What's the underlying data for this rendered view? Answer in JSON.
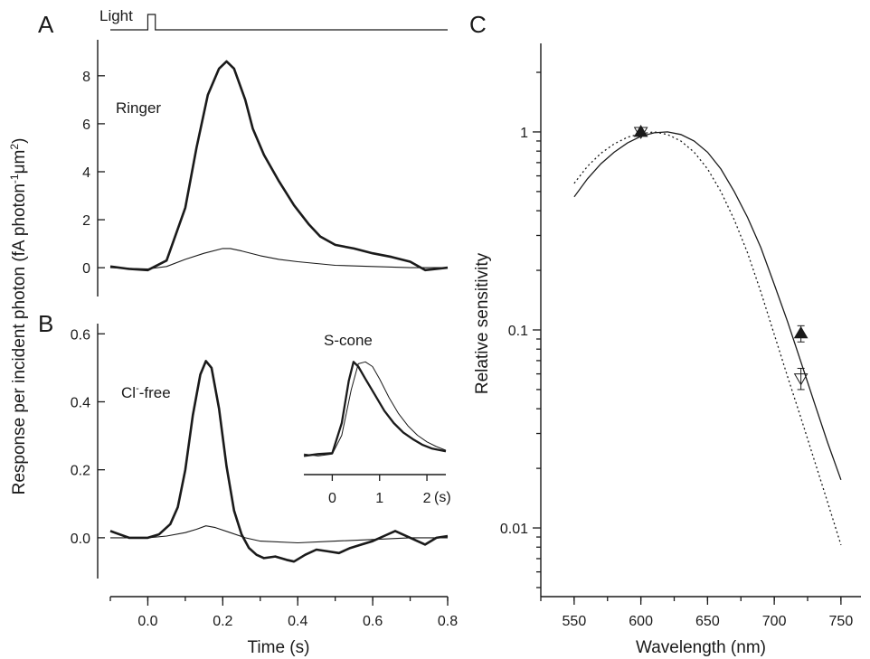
{
  "panels": {
    "a": "A",
    "b": "B",
    "c": "C"
  },
  "light_label": "Light",
  "ylabel_ab_main": "Response per incident photon (fA photon",
  "ylabel_ab_sup1": "-1",
  "ylabel_ab_mid": "μm",
  "ylabel_ab_sup2": "2",
  "ylabel_ab_end": ")",
  "annotation_ringer": "Ringer",
  "annotation_clfree_pre": "Cl",
  "annotation_clfree_sup": "-",
  "annotation_clfree_post": "-free",
  "inset_title": "S-cone",
  "inset_unit": "(s)",
  "chart_data": [
    {
      "id": "A",
      "type": "line",
      "title": "",
      "annotation": "Ringer",
      "xlabel": "",
      "ylabel": "Response per incident photon (fA photon-1 μm2)",
      "xlim": [
        -0.1,
        0.8
      ],
      "ylim": [
        -1.2,
        9.5
      ],
      "yticks": [
        0,
        2,
        4,
        6,
        8
      ],
      "stimulus": {
        "label": "Light",
        "on": 0.0,
        "off": 0.02
      },
      "series": [
        {
          "style": "thick",
          "x": [
            -0.1,
            -0.05,
            0.0,
            0.05,
            0.1,
            0.13,
            0.16,
            0.19,
            0.21,
            0.23,
            0.26,
            0.28,
            0.31,
            0.35,
            0.39,
            0.43,
            0.46,
            0.5,
            0.55,
            0.6,
            0.65,
            0.7,
            0.74,
            0.77,
            0.8
          ],
          "y": [
            0.05,
            -0.05,
            -0.1,
            0.3,
            2.5,
            5.0,
            7.2,
            8.3,
            8.6,
            8.3,
            7.0,
            5.8,
            4.7,
            3.6,
            2.6,
            1.8,
            1.3,
            0.95,
            0.8,
            0.6,
            0.45,
            0.25,
            -0.1,
            -0.05,
            0.0
          ]
        },
        {
          "style": "thin",
          "x": [
            -0.1,
            0.0,
            0.05,
            0.1,
            0.15,
            0.2,
            0.22,
            0.25,
            0.3,
            0.35,
            0.4,
            0.5,
            0.6,
            0.7,
            0.8
          ],
          "y": [
            0.0,
            -0.05,
            0.05,
            0.35,
            0.6,
            0.8,
            0.8,
            0.7,
            0.5,
            0.35,
            0.25,
            0.1,
            0.05,
            0.0,
            0.0
          ]
        }
      ]
    },
    {
      "id": "B",
      "type": "line",
      "title": "",
      "annotation": "Cl-free",
      "xlabel": "Time (s)",
      "xlim": [
        -0.1,
        0.8
      ],
      "xticks": [
        0.0,
        0.2,
        0.4,
        0.6,
        0.8
      ],
      "ylim": [
        -0.12,
        0.63
      ],
      "yticks": [
        0.0,
        0.2,
        0.4,
        0.6
      ],
      "series": [
        {
          "style": "thick",
          "x": [
            -0.1,
            -0.05,
            0.0,
            0.03,
            0.06,
            0.08,
            0.1,
            0.12,
            0.14,
            0.155,
            0.17,
            0.19,
            0.21,
            0.23,
            0.25,
            0.27,
            0.29,
            0.31,
            0.34,
            0.37,
            0.39,
            0.42,
            0.45,
            0.48,
            0.51,
            0.54,
            0.57,
            0.6,
            0.63,
            0.66,
            0.7,
            0.74,
            0.77,
            0.8
          ],
          "y": [
            0.02,
            0.0,
            0.0,
            0.01,
            0.04,
            0.09,
            0.2,
            0.36,
            0.48,
            0.52,
            0.5,
            0.38,
            0.21,
            0.08,
            0.01,
            -0.03,
            -0.05,
            -0.06,
            -0.055,
            -0.065,
            -0.07,
            -0.05,
            -0.035,
            -0.04,
            -0.045,
            -0.03,
            -0.02,
            -0.01,
            0.005,
            0.02,
            0.0,
            -0.02,
            0.0,
            0.005
          ]
        },
        {
          "style": "thin",
          "x": [
            -0.1,
            0.0,
            0.05,
            0.1,
            0.13,
            0.155,
            0.18,
            0.22,
            0.26,
            0.3,
            0.4,
            0.5,
            0.6,
            0.7,
            0.8
          ],
          "y": [
            0.0,
            0.0,
            0.005,
            0.015,
            0.025,
            0.035,
            0.03,
            0.015,
            0.0,
            -0.01,
            -0.015,
            -0.01,
            -0.005,
            0.0,
            0.0
          ]
        }
      ]
    },
    {
      "id": "B-inset",
      "type": "line",
      "title": "S-cone",
      "xlabel": "(s)",
      "xlim": [
        -0.6,
        2.4
      ],
      "xticks": [
        0,
        1,
        2
      ],
      "ylim": [
        -0.15,
        1.08
      ],
      "series": [
        {
          "style": "thick",
          "x": [
            -0.6,
            -0.3,
            0.0,
            0.2,
            0.35,
            0.45,
            0.55,
            0.7,
            0.9,
            1.1,
            1.3,
            1.5,
            1.7,
            1.9,
            2.1,
            2.4
          ],
          "y": [
            0.0,
            0.02,
            0.03,
            0.35,
            0.8,
            1.0,
            0.95,
            0.82,
            0.65,
            0.48,
            0.35,
            0.25,
            0.18,
            0.12,
            0.08,
            0.05
          ]
        },
        {
          "style": "thin",
          "x": [
            -0.6,
            -0.3,
            0.0,
            0.2,
            0.4,
            0.55,
            0.7,
            0.85,
            1.0,
            1.2,
            1.4,
            1.6,
            1.8,
            2.0,
            2.2,
            2.4
          ],
          "y": [
            0.02,
            0.0,
            0.02,
            0.22,
            0.7,
            0.98,
            1.0,
            0.95,
            0.82,
            0.62,
            0.45,
            0.32,
            0.22,
            0.15,
            0.1,
            0.06
          ]
        }
      ]
    },
    {
      "id": "C",
      "type": "line",
      "title": "",
      "xlabel": "Wavelength (nm)",
      "ylabel": "Relative sensitivity",
      "xlim": [
        525,
        765
      ],
      "xticks": [
        550,
        600,
        650,
        700,
        750
      ],
      "ylim": [
        0.0045,
        2.8
      ],
      "yscale": "log",
      "ytick_labels": [
        {
          "v": 1,
          "label": "1"
        },
        {
          "v": 0.1,
          "label": "0.1"
        },
        {
          "v": 0.01,
          "label": "0.01"
        }
      ],
      "series": [
        {
          "style": "solid",
          "x": [
            550,
            560,
            570,
            580,
            590,
            600,
            610,
            620,
            630,
            640,
            650,
            660,
            670,
            680,
            690,
            700,
            710,
            720,
            730,
            740,
            750
          ],
          "y": [
            0.47,
            0.58,
            0.69,
            0.79,
            0.88,
            0.95,
            0.99,
            1.0,
            0.97,
            0.9,
            0.79,
            0.65,
            0.5,
            0.37,
            0.26,
            0.17,
            0.11,
            0.069,
            0.043,
            0.027,
            0.0175
          ]
        },
        {
          "style": "dotted",
          "x": [
            550,
            560,
            570,
            580,
            590,
            600,
            610,
            620,
            630,
            640,
            650,
            660,
            670,
            680,
            690,
            700,
            710,
            720,
            730,
            740,
            750
          ],
          "y": [
            0.55,
            0.67,
            0.78,
            0.87,
            0.94,
            0.98,
            1.0,
            0.97,
            0.9,
            0.79,
            0.65,
            0.5,
            0.36,
            0.245,
            0.155,
            0.095,
            0.058,
            0.036,
            0.022,
            0.0135,
            0.0082
          ]
        }
      ],
      "points": [
        {
          "marker": "filled-triangle-up",
          "x": 720,
          "y": 0.096,
          "err": 0.009
        },
        {
          "marker": "open-triangle-down",
          "x": 720,
          "y": 0.057,
          "err": 0.007
        },
        {
          "marker": "filled-triangle-up",
          "x": 600,
          "y": 1.0,
          "err": 0.0
        },
        {
          "marker": "open-triangle-down",
          "x": 600,
          "y": 1.0,
          "err": 0.0
        }
      ]
    }
  ]
}
